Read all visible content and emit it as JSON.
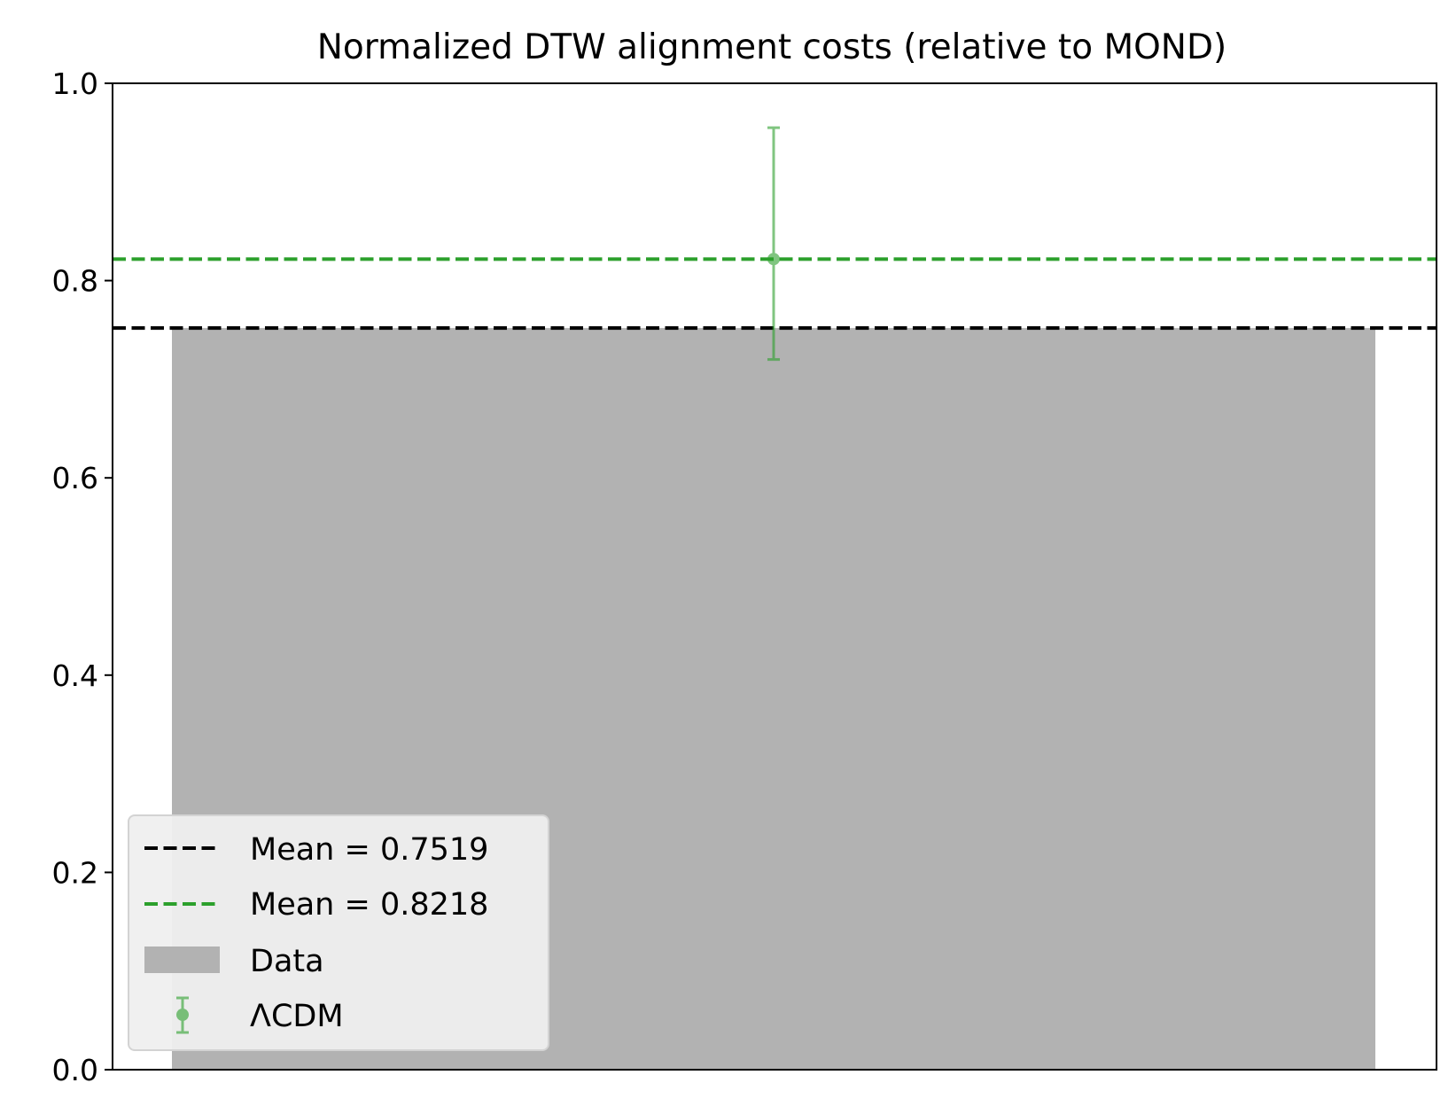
{
  "chart_data": {
    "type": "bar",
    "title": "Normalized DTW alignment costs (relative to MOND)",
    "xlabel": "",
    "ylabel": "",
    "ylim": [
      0,
      1.0
    ],
    "yticks": [
      "0.0",
      "0.2",
      "0.4",
      "0.6",
      "0.8",
      "1.0"
    ],
    "grid": false,
    "legend_position": "lower-left",
    "bar": {
      "label": "Data",
      "value": 0.7519,
      "color": "#b2b2b2"
    },
    "errorbar": {
      "label": "ΛCDM",
      "value": 0.8218,
      "lower": 0.72,
      "upper": 0.955,
      "color": "#2ca02c"
    },
    "hlines": [
      {
        "label": "Mean = 0.7519",
        "value": 0.7519,
        "color": "#000000",
        "style": "dashed"
      },
      {
        "label": "Mean = 0.8218",
        "value": 0.8218,
        "color": "#2ca02c",
        "style": "dashed"
      }
    ]
  }
}
